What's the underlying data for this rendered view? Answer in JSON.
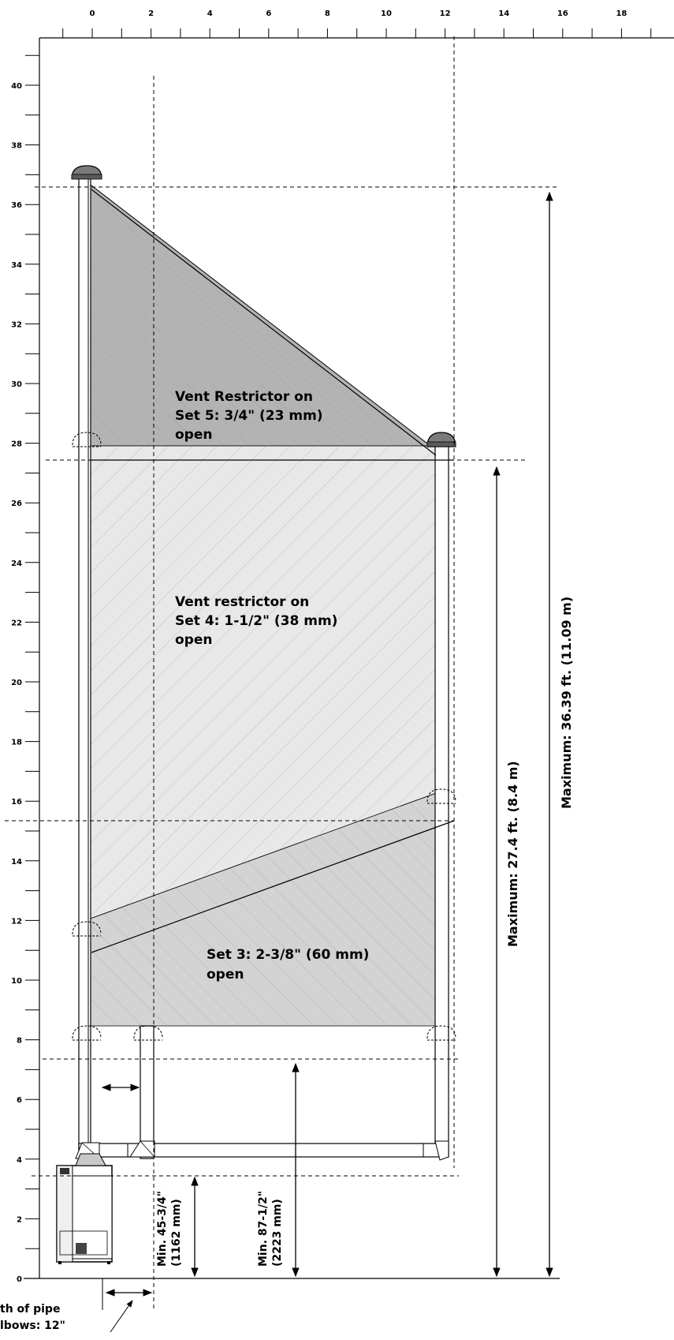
{
  "axes": {
    "x_ticks": [
      "0",
      "2",
      "4",
      "6",
      "8",
      "10",
      "12",
      "14",
      "16",
      "18"
    ],
    "y_ticks": [
      "0",
      "2",
      "4",
      "6",
      "8",
      "10",
      "12",
      "14",
      "16",
      "18",
      "20",
      "22",
      "24",
      "26",
      "28",
      "30",
      "32",
      "34",
      "36",
      "38",
      "40"
    ]
  },
  "zones": {
    "set5": [
      "Vent Restrictor on",
      "Set 5: 3/4\"  (23  mm)",
      "open"
    ],
    "set4": [
      "Vent restrictor on",
      "Set 4: 1-1/2\" (38 mm)",
      "open"
    ],
    "set3": [
      "Set  3:  2-3/8\"  (60  mm)",
      "open"
    ]
  },
  "dimensions": {
    "max_36": "Maximum: 36.39 ft. (11.09 m)",
    "max_27": "Maximum: 27.4 ft. (8.4 m)",
    "min_87": [
      "Min. 87-1/2\"",
      "(2223 mm)"
    ],
    "min_45": [
      "Min. 45-3/4\"",
      "(1162 mm)"
    ],
    "pipe_length": [
      "th  of  pipe",
      "lbows: 12\""
    ]
  },
  "colors": {
    "zone_dark": "#b3b3b3",
    "zone_light": "#e5e5e5",
    "line": "#000000"
  }
}
